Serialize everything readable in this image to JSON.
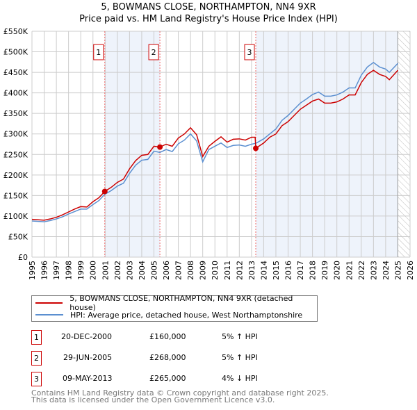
{
  "chart_data": {
    "type": "line",
    "title": "5, BOWMANS CLOSE, NORTHAMPTON, NN4 9XR",
    "subtitle": "Price paid vs. HM Land Registry's House Price Index (HPI)",
    "xlim": [
      1995,
      2026
    ],
    "ylim": [
      0,
      550000
    ],
    "yticks": [
      0,
      50000,
      100000,
      150000,
      200000,
      250000,
      300000,
      350000,
      400000,
      450000,
      500000,
      550000
    ],
    "ytick_labels": [
      "£0",
      "£50K",
      "£100K",
      "£150K",
      "£200K",
      "£250K",
      "£300K",
      "£350K",
      "£400K",
      "£450K",
      "£500K",
      "£550K"
    ],
    "xtick_labels": [
      "1995",
      "1996",
      "1997",
      "1998",
      "1999",
      "2000",
      "2001",
      "2002",
      "2003",
      "2004",
      "2005",
      "2006",
      "2007",
      "2008",
      "2009",
      "2010",
      "2011",
      "2012",
      "2013",
      "2014",
      "2015",
      "2016",
      "2017",
      "2018",
      "2019",
      "2020",
      "2021",
      "2022",
      "2023",
      "2024",
      "2025",
      "2026"
    ],
    "grid": true,
    "colors": {
      "price": "#cc0000",
      "hpi": "#5b8fd0",
      "shade": "#eef3fb"
    },
    "shaded_ranges": [
      [
        2000.97,
        2005.49
      ],
      [
        2013.35,
        2025.0
      ]
    ],
    "hatched_from": 2025.0,
    "series": [
      {
        "name": "5, BOWMANS CLOSE, NORTHAMPTON, NN4 9XR (detached house)",
        "x": [
          1995,
          1996,
          1996.5,
          1997,
          1997.5,
          1998,
          1998.5,
          1999,
          1999.5,
          2000,
          2000.5,
          2000.97,
          2001.5,
          2002,
          2002.5,
          2003,
          2003.5,
          2004,
          2004.5,
          2005,
          2005.49,
          2006,
          2006.5,
          2007,
          2007.5,
          2008,
          2008.5,
          2009,
          2009.5,
          2010,
          2010.5,
          2011,
          2011.5,
          2012,
          2012.5,
          2013,
          2013.3,
          2013.35,
          2014,
          2014.5,
          2015,
          2015.5,
          2016,
          2016.5,
          2017,
          2017.5,
          2018,
          2018.5,
          2019,
          2019.5,
          2020,
          2020.5,
          2021,
          2021.5,
          2022,
          2022.5,
          2023,
          2023.5,
          2024,
          2024.3,
          2025
        ],
        "values": [
          92000,
          90000,
          93000,
          97000,
          103000,
          110000,
          117000,
          123000,
          122000,
          135000,
          145000,
          160000,
          170000,
          182000,
          190000,
          215000,
          235000,
          248000,
          250000,
          270000,
          268000,
          275000,
          270000,
          290000,
          300000,
          315000,
          298000,
          245000,
          270000,
          282000,
          293000,
          280000,
          287000,
          288000,
          285000,
          292000,
          292000,
          265000,
          278000,
          292000,
          300000,
          320000,
          330000,
          345000,
          360000,
          370000,
          380000,
          385000,
          375000,
          375000,
          378000,
          385000,
          395000,
          395000,
          425000,
          445000,
          455000,
          445000,
          440000,
          432000,
          455000
        ]
      },
      {
        "name": "HPI: Average price, detached house, West Northamptonshire",
        "x": [
          1995,
          1996,
          1996.5,
          1997,
          1997.5,
          1998,
          1998.5,
          1999,
          1999.5,
          2000,
          2000.5,
          2000.97,
          2001.5,
          2002,
          2002.5,
          2003,
          2003.5,
          2004,
          2004.5,
          2005,
          2005.49,
          2006,
          2006.5,
          2007,
          2007.5,
          2008,
          2008.5,
          2009,
          2009.5,
          2010,
          2010.5,
          2011,
          2011.5,
          2012,
          2012.5,
          2013,
          2013.35,
          2014,
          2014.5,
          2015,
          2015.5,
          2016,
          2016.5,
          2017,
          2017.5,
          2018,
          2018.5,
          2019,
          2019.5,
          2020,
          2020.5,
          2021,
          2021.5,
          2022,
          2022.5,
          2023,
          2023.5,
          2024,
          2024.3,
          2025
        ],
        "values": [
          88000,
          86000,
          89000,
          93000,
          98000,
          105000,
          111000,
          117000,
          117000,
          128000,
          138000,
          153000,
          162000,
          173000,
          180000,
          204000,
          224000,
          236000,
          238000,
          258000,
          255000,
          262000,
          257000,
          276000,
          285000,
          300000,
          283000,
          232000,
          262000,
          270000,
          278000,
          267000,
          272000,
          273000,
          270000,
          275000,
          277000,
          288000,
          300000,
          312000,
          333000,
          345000,
          360000,
          375000,
          385000,
          396000,
          402000,
          392000,
          392000,
          395000,
          402000,
          412000,
          412000,
          443000,
          463000,
          474000,
          463000,
          458000,
          450000,
          472000
        ]
      }
    ],
    "sales": [
      {
        "label": "1",
        "x": 2000.97,
        "value": 160000
      },
      {
        "label": "2",
        "x": 2005.49,
        "value": 268000
      },
      {
        "label": "3",
        "x": 2013.35,
        "value": 265000
      }
    ]
  },
  "table": [
    {
      "num": "1",
      "date": "20-DEC-2000",
      "price": "£160,000",
      "hpi": "5% ↑ HPI"
    },
    {
      "num": "2",
      "date": "29-JUN-2005",
      "price": "£268,000",
      "hpi": "5% ↑ HPI"
    },
    {
      "num": "3",
      "date": "09-MAY-2013",
      "price": "£265,000",
      "hpi": "4% ↓ HPI"
    }
  ],
  "footer": {
    "line1": "Contains HM Land Registry data © Crown copyright and database right 2025.",
    "line2": "This data is licensed under the Open Government Licence v3.0."
  }
}
